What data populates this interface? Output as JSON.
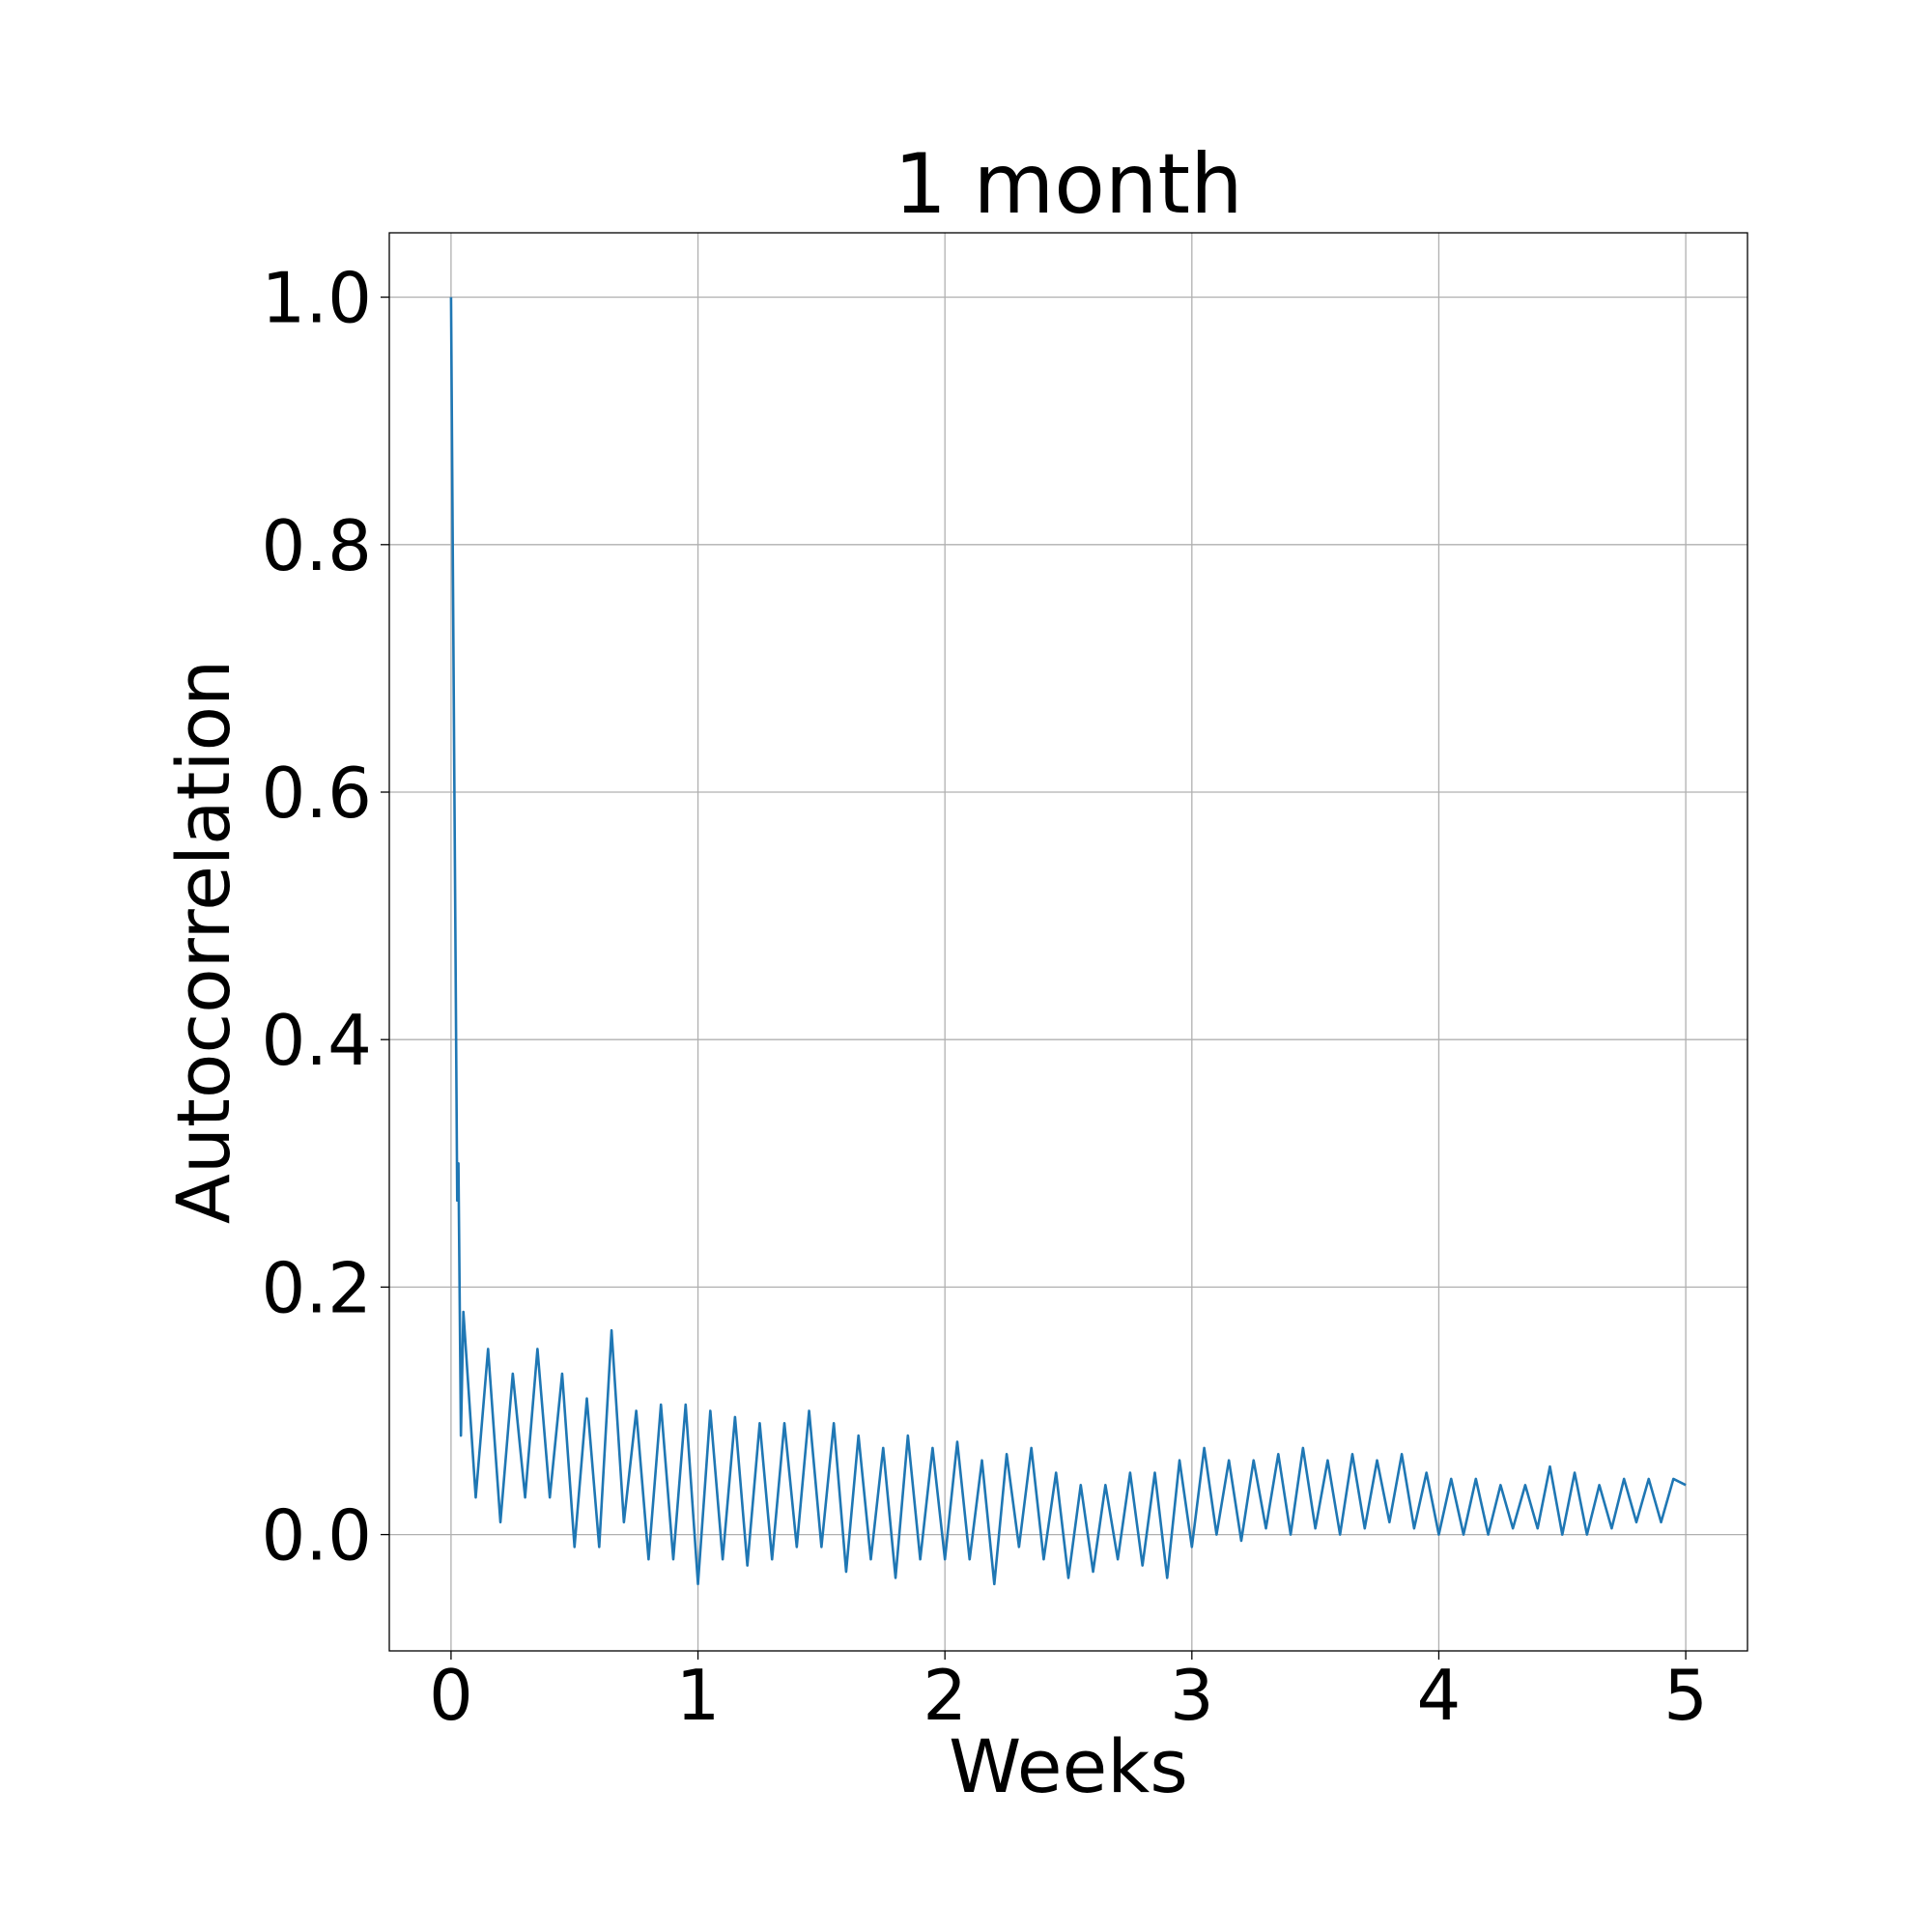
{
  "chart_data": {
    "type": "line",
    "title": "1 month",
    "xlabel": "Weeks",
    "ylabel": "Autocorrelation",
    "xlim": [
      -0.25,
      5.25
    ],
    "ylim": [
      -0.094,
      1.052
    ],
    "xticks": [
      0,
      1,
      2,
      3,
      4,
      5
    ],
    "yticks": [
      {
        "value": 0,
        "label": "0.0"
      },
      0.2,
      0.4,
      0.6,
      0.8,
      {
        "value": 1,
        "label": "1.0"
      }
    ],
    "grid": true,
    "series": [
      {
        "name": "autocorrelation",
        "color": "#1f77b4",
        "x": [
          0,
          0.025,
          0.03,
          0.04,
          0.05,
          0.1,
          0.15,
          0.2,
          0.25,
          0.3,
          0.35,
          0.4,
          0.45,
          0.5,
          0.55,
          0.6,
          0.65,
          0.7,
          0.75,
          0.8,
          0.85,
          0.9,
          0.95,
          1.0,
          1.05,
          1.1,
          1.15,
          1.2,
          1.25,
          1.3,
          1.35,
          1.4,
          1.45,
          1.5,
          1.55,
          1.6,
          1.65,
          1.7,
          1.75,
          1.8,
          1.85,
          1.9,
          1.95,
          2.0,
          2.05,
          2.1,
          2.15,
          2.2,
          2.25,
          2.3,
          2.35,
          2.4,
          2.45,
          2.5,
          2.55,
          2.6,
          2.65,
          2.7,
          2.75,
          2.8,
          2.85,
          2.9,
          2.95,
          3.0,
          3.05,
          3.1,
          3.15,
          3.2,
          3.25,
          3.3,
          3.35,
          3.4,
          3.45,
          3.5,
          3.55,
          3.6,
          3.65,
          3.7,
          3.75,
          3.8,
          3.85,
          3.9,
          3.95,
          4.0,
          4.05,
          4.1,
          4.15,
          4.2,
          4.25,
          4.3,
          4.35,
          4.4,
          4.45,
          4.5,
          4.55,
          4.6,
          4.65,
          4.7,
          4.75,
          4.8,
          4.85,
          4.9,
          4.95,
          5.0
        ],
        "values": [
          1.0,
          0.27,
          0.3,
          0.08,
          0.18,
          0.03,
          0.15,
          0.01,
          0.13,
          0.03,
          0.15,
          0.03,
          0.13,
          -0.01,
          0.11,
          -0.01,
          0.165,
          0.01,
          0.1,
          -0.02,
          0.105,
          -0.02,
          0.105,
          -0.04,
          0.1,
          -0.02,
          0.095,
          -0.025,
          0.09,
          -0.02,
          0.09,
          -0.01,
          0.1,
          -0.01,
          0.09,
          -0.03,
          0.08,
          -0.02,
          0.07,
          -0.035,
          0.08,
          -0.02,
          0.07,
          -0.02,
          0.075,
          -0.02,
          0.06,
          -0.04,
          0.065,
          -0.01,
          0.07,
          -0.02,
          0.05,
          -0.035,
          0.04,
          -0.03,
          0.04,
          -0.02,
          0.05,
          -0.025,
          0.05,
          -0.035,
          0.06,
          -0.01,
          0.07,
          0.0,
          0.06,
          -0.005,
          0.06,
          0.005,
          0.065,
          0.0,
          0.07,
          0.005,
          0.06,
          0.0,
          0.065,
          0.005,
          0.06,
          0.01,
          0.065,
          0.005,
          0.05,
          0.0,
          0.045,
          0.0,
          0.045,
          0.0,
          0.04,
          0.005,
          0.04,
          0.005,
          0.055,
          0.0,
          0.05,
          0.0,
          0.04,
          0.005,
          0.045,
          0.01,
          0.045,
          0.01,
          0.045,
          0.04
        ]
      }
    ]
  }
}
